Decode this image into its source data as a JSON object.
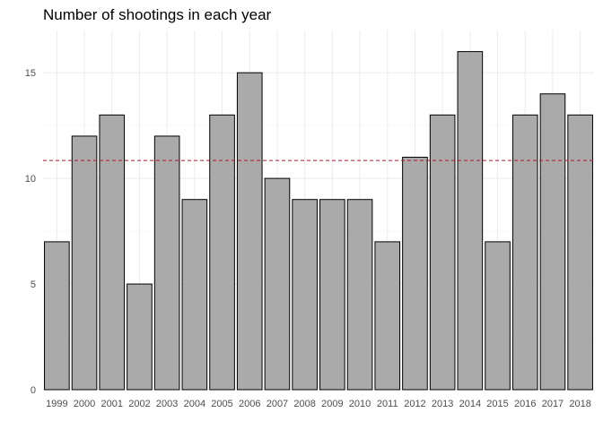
{
  "chart_data": {
    "type": "bar",
    "title": "Number of shootings in each year",
    "xlabel": "",
    "ylabel": "",
    "categories": [
      "1999",
      "2000",
      "2001",
      "2002",
      "2003",
      "2004",
      "2005",
      "2006",
      "2007",
      "2008",
      "2009",
      "2010",
      "2011",
      "2012",
      "2013",
      "2014",
      "2015",
      "2016",
      "2017",
      "2018"
    ],
    "values": [
      7,
      12,
      13,
      5,
      12,
      9,
      13,
      15,
      10,
      9,
      9,
      9,
      7,
      11,
      13,
      16,
      7,
      13,
      14,
      13
    ],
    "ylim": [
      0,
      17
    ],
    "yticks": [
      0,
      5,
      10,
      15
    ],
    "reference_line": {
      "y": 10.85,
      "style": "dashed",
      "color": "#b2182b"
    },
    "bar_color": "#aaaaaa",
    "grid": true,
    "legend": "none"
  }
}
